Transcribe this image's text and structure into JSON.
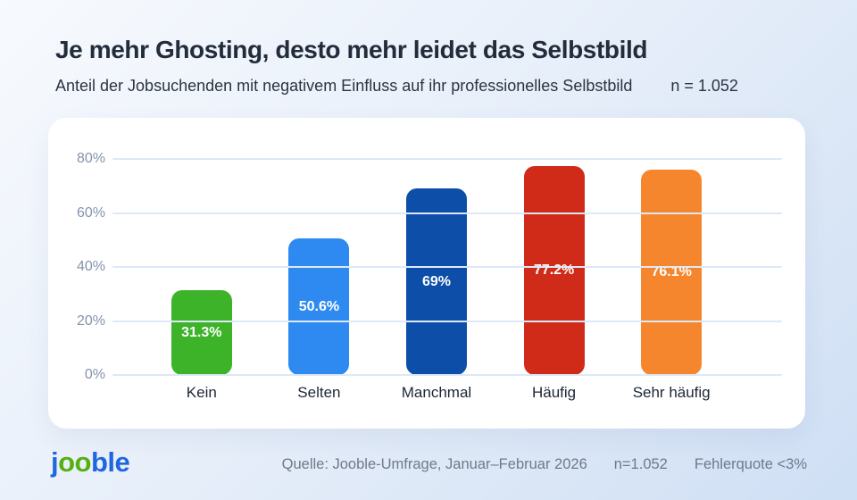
{
  "header": {
    "title": "Je mehr Ghosting, desto mehr leidet das Selbstbild",
    "subtitle": "Anteil der Jobsuchenden mit negativem Einfluss auf ihr professionelles Selbstbild",
    "sample_note": "n = 1.052"
  },
  "chart_data": {
    "type": "bar",
    "title": "Je mehr Ghosting, desto mehr leidet das Selbstbild",
    "subtitle": "Anteil der Jobsuchenden mit negativem Einfluss auf ihr professionelles Selbstbild",
    "categories": [
      "Kein",
      "Selten",
      "Manchmal",
      "Häufig",
      "Sehr häufig"
    ],
    "values": [
      31.3,
      50.6,
      69,
      77.2,
      76.1
    ],
    "value_labels": [
      "31.3%",
      "50.6%",
      "69%",
      "77.2%",
      "76.1%"
    ],
    "bar_colors": [
      "#3db32a",
      "#2e8af0",
      "#0d4fa8",
      "#d02a18",
      "#f5862e"
    ],
    "value_label_color": "#ffffff",
    "xlabel": "",
    "ylabel": "",
    "ylim": [
      0,
      80
    ],
    "yticks": [
      0,
      20,
      40,
      60,
      80
    ],
    "ytick_labels": [
      "0%",
      "20%",
      "40%",
      "60%",
      "80%"
    ],
    "grid": true,
    "legend": false,
    "n": "1.052"
  },
  "footer": {
    "logo_text": "jooble",
    "logo_parts": [
      {
        "text": "j",
        "color": "#2066df"
      },
      {
        "text": "oo",
        "color": "#57b013"
      },
      {
        "text": "ble",
        "color": "#2066df"
      }
    ],
    "source": "Quelle: Jooble-Umfrage, Januar–Februar 2026",
    "sample": "n=1.052",
    "error_note": "Fehlerquote <3%"
  },
  "colors": {
    "background_start": "#f7fafe",
    "background_end": "#cfdff4",
    "card": "#ffffff",
    "title_text": "#222c3a",
    "axis_text": "#8493aa",
    "gridline": "#dde9f7",
    "category_text": "#1c2634",
    "footer_text": "#6e7a8a"
  }
}
